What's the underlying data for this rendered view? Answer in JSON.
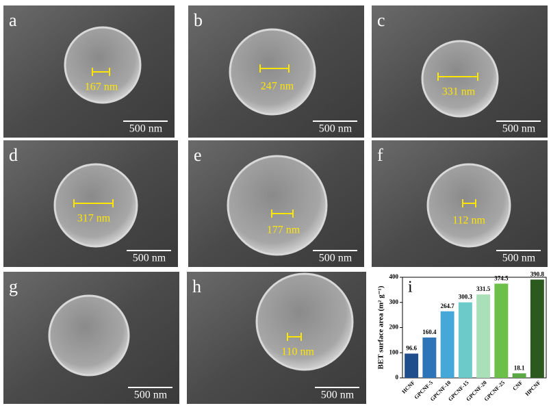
{
  "panels": [
    {
      "letter": "a",
      "measure": "167 nm",
      "scale": "500 nm"
    },
    {
      "letter": "b",
      "measure": "247 nm",
      "scale": "500 nm"
    },
    {
      "letter": "c",
      "measure": "331 nm",
      "scale": "500 nm"
    },
    {
      "letter": "d",
      "measure": "317 nm",
      "scale": "500 nm"
    },
    {
      "letter": "e",
      "measure": "177 nm",
      "scale": "500 nm"
    },
    {
      "letter": "f",
      "measure": "112 nm",
      "scale": "500 nm"
    },
    {
      "letter": "g",
      "scale": "500 nm"
    },
    {
      "letter": "h",
      "measure": "110 nm",
      "scale": "500 nm"
    }
  ],
  "chart_data": {
    "type": "bar",
    "label": "i",
    "ylabel": "BET surface area (m² g⁻¹)",
    "categories": [
      "HCNF",
      "GPCNF-5",
      "GPCNF-10",
      "GPCNF-15",
      "GPCNF-20",
      "GPCNF-25",
      "CNF",
      "HPCNF"
    ],
    "values": [
      96.6,
      160.4,
      264.7,
      300.3,
      331.5,
      374.5,
      18.1,
      390.8
    ],
    "colors": [
      "#1f4e8c",
      "#2e74b8",
      "#45a8d8",
      "#6ccbc8",
      "#a9e0b8",
      "#6cbf48",
      "#5aa844",
      "#2c5a1e"
    ],
    "ylim": [
      0,
      400
    ],
    "yticks": [
      0,
      100,
      200,
      300,
      400
    ]
  }
}
